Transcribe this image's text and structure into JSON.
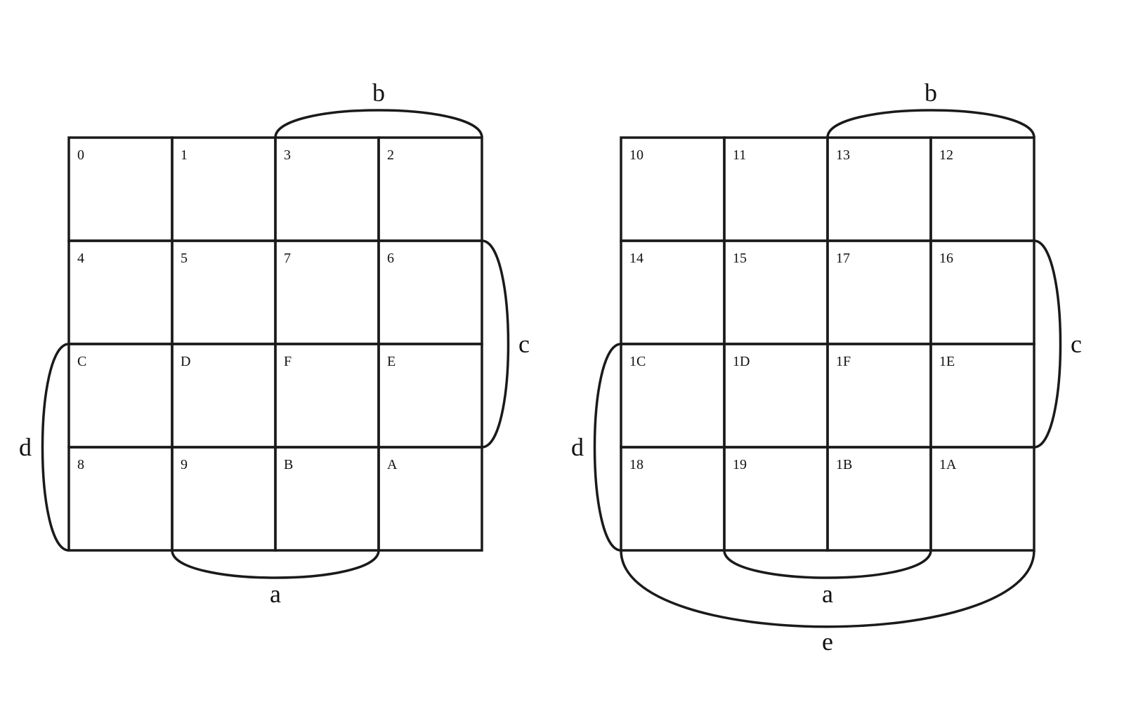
{
  "maps": [
    {
      "cells": [
        [
          "0",
          "1",
          "3",
          "2"
        ],
        [
          "4",
          "5",
          "7",
          "6"
        ],
        [
          "C",
          "D",
          "F",
          "E"
        ],
        [
          "8",
          "9",
          "B",
          "A"
        ]
      ],
      "labels": {
        "a": "a",
        "b": "b",
        "c": "c",
        "d": "d"
      }
    },
    {
      "cells": [
        [
          "10",
          "11",
          "13",
          "12"
        ],
        [
          "14",
          "15",
          "17",
          "16"
        ],
        [
          "1C",
          "1D",
          "1F",
          "1E"
        ],
        [
          "18",
          "19",
          "1B",
          "1A"
        ]
      ],
      "labels": {
        "a": "a",
        "b": "b",
        "c": "c",
        "d": "d",
        "e": "e"
      }
    }
  ]
}
